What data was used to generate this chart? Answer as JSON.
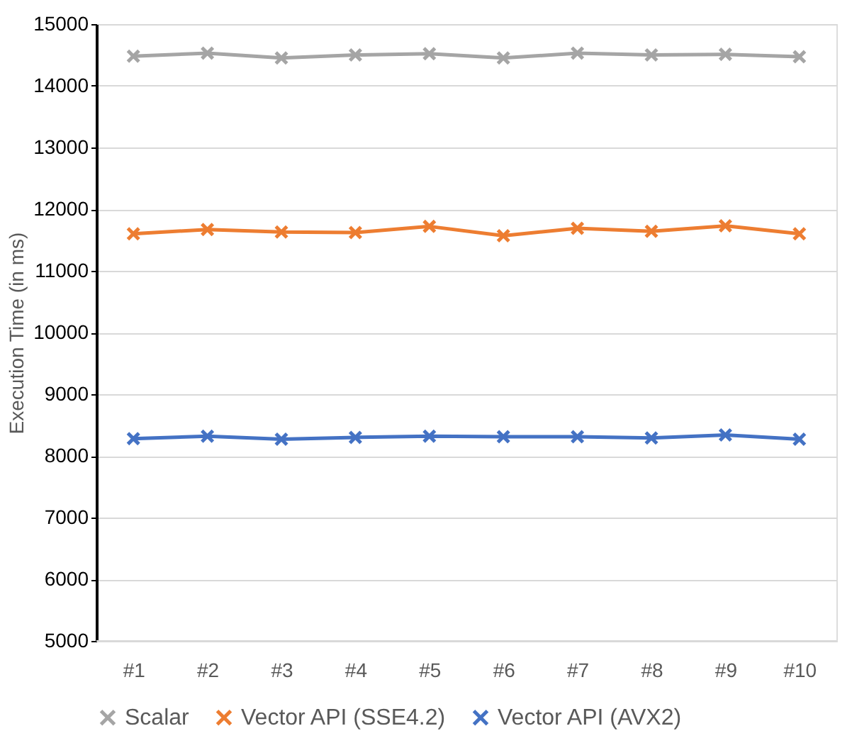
{
  "chart_data": {
    "type": "line",
    "ylabel": "Execution Time (in ms)",
    "categories": [
      "#1",
      "#2",
      "#3",
      "#4",
      "#5",
      "#6",
      "#7",
      "#8",
      "#9",
      "#10"
    ],
    "series": [
      {
        "name": "Scalar",
        "color": "#a5a5a5",
        "values": [
          14480,
          14530,
          14450,
          14500,
          14520,
          14450,
          14530,
          14500,
          14510,
          14470
        ]
      },
      {
        "name": "Vector API (SSE4.2)",
        "color": "#ed7d31",
        "values": [
          11600,
          11670,
          11630,
          11620,
          11720,
          11570,
          11690,
          11640,
          11730,
          11600
        ]
      },
      {
        "name": "Vector API (AVX2)",
        "color": "#4472c4",
        "values": [
          8280,
          8320,
          8270,
          8300,
          8320,
          8310,
          8310,
          8290,
          8340,
          8270
        ]
      }
    ],
    "ylim": [
      5000,
      15000
    ],
    "yticks": [
      5000,
      6000,
      7000,
      8000,
      9000,
      10000,
      11000,
      12000,
      13000,
      14000,
      15000
    ],
    "grid": "y",
    "legend": "bottom",
    "marker": "cross",
    "line_style": "solid"
  }
}
